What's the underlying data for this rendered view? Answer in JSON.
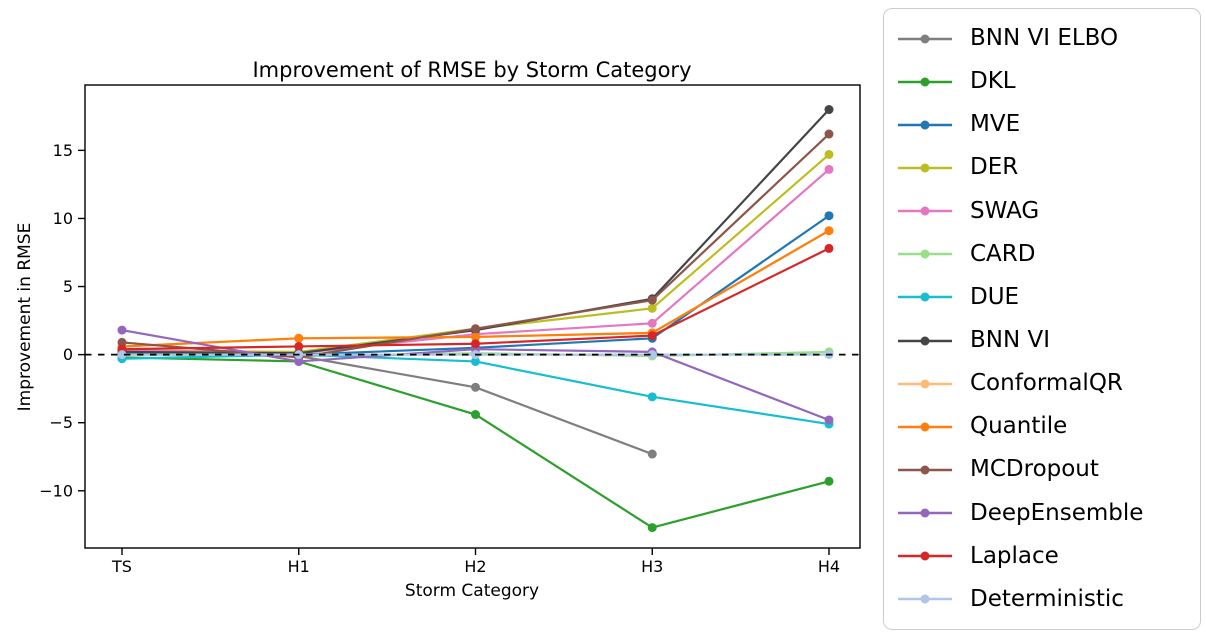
{
  "chart_data": {
    "type": "line",
    "title": "Improvement of RMSE by Storm Category",
    "xlabel": "Storm Category",
    "ylabel": "Improvement in RMSE",
    "categories": [
      "TS",
      "H1",
      "H2",
      "H3",
      "H4"
    ],
    "yticks": [
      -10,
      -5,
      0,
      5,
      10,
      15
    ],
    "ylim": [
      -14.2,
      19.8
    ],
    "grid": false,
    "legend_position": "right-outside",
    "zero_reference_line": {
      "y": 0,
      "style": "dashed",
      "color": "#000000"
    },
    "series": [
      {
        "name": "BNN VI ELBO",
        "color": "#7f7f7f",
        "values": [
          0.1,
          -0.1,
          -2.4,
          -7.3,
          null
        ]
      },
      {
        "name": "DKL",
        "color": "#2ca02c",
        "values": [
          -0.2,
          -0.5,
          -4.4,
          -12.7,
          -9.3
        ]
      },
      {
        "name": "MVE",
        "color": "#1f77b4",
        "values": [
          0.1,
          0.0,
          0.5,
          1.2,
          10.2
        ]
      },
      {
        "name": "DER",
        "color": "#bcbd22",
        "values": [
          0.3,
          0.2,
          1.9,
          3.4,
          14.7
        ]
      },
      {
        "name": "SWAG",
        "color": "#e377c2",
        "values": [
          0.3,
          0.1,
          1.5,
          2.3,
          13.6
        ]
      },
      {
        "name": "CARD",
        "color": "#98df8a",
        "values": [
          0.0,
          -0.1,
          0.1,
          -0.1,
          0.2
        ]
      },
      {
        "name": "DUE",
        "color": "#17becf",
        "values": [
          -0.3,
          0.0,
          -0.5,
          -3.1,
          -5.1
        ]
      },
      {
        "name": "BNN VI",
        "color": "#454545",
        "values": [
          0.2,
          0.1,
          1.8,
          4.1,
          18.0
        ]
      },
      {
        "name": "ConformalQR",
        "color": "#ffbb78",
        "values": [
          0.6,
          1.2,
          1.3,
          1.6,
          9.1
        ]
      },
      {
        "name": "Quantile",
        "color": "#ff7f0e",
        "values": [
          0.6,
          1.2,
          1.3,
          1.6,
          9.1
        ]
      },
      {
        "name": "MCDropout",
        "color": "#8c564b",
        "values": [
          0.9,
          -0.2,
          1.9,
          4.0,
          16.2
        ]
      },
      {
        "name": "DeepEnsemble",
        "color": "#9467bd",
        "values": [
          1.8,
          -0.5,
          0.4,
          0.2,
          -4.8
        ]
      },
      {
        "name": "Laplace",
        "color": "#d62728",
        "values": [
          0.4,
          0.6,
          0.8,
          1.4,
          7.8
        ]
      },
      {
        "name": "Deterministic",
        "color": "#aec7e8",
        "values": [
          0.0,
          0.0,
          0.0,
          0.0,
          0.0
        ]
      }
    ]
  }
}
